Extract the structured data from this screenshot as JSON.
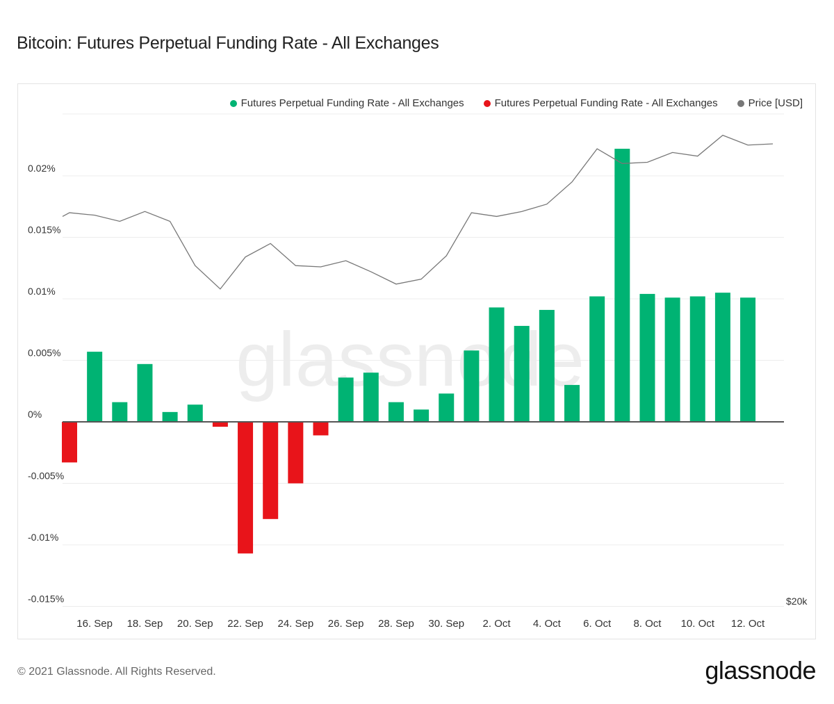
{
  "title": "Bitcoin: Futures Perpetual Funding Rate - All Exchanges",
  "footer": {
    "copyright": "© 2021 Glassnode. All Rights Reserved.",
    "logo": "glassnode"
  },
  "watermark": "glassnode",
  "legend": [
    {
      "label": "Futures Perpetual Funding Rate - All Exchanges",
      "color": "#00b373"
    },
    {
      "label": "Futures Perpetual Funding Rate - All Exchanges",
      "color": "#e8141a"
    },
    {
      "label": "Price [USD]",
      "color": "#777777"
    }
  ],
  "chart_data": {
    "type": "bar",
    "y_axis": {
      "ticks": [
        0.02,
        0.015,
        0.01,
        0.005,
        0,
        -0.005,
        -0.01,
        -0.015
      ],
      "tick_labels": [
        "0.02%",
        "0.015%",
        "0.01%",
        "0.005%",
        "0%",
        "-0.005%",
        "-0.01%",
        "-0.015%"
      ],
      "range": [
        -0.015,
        0.025
      ]
    },
    "right_axis": {
      "label": "$20k"
    },
    "x_tick_labels": [
      "16. Sep",
      "18. Sep",
      "20. Sep",
      "22. Sep",
      "24. Sep",
      "26. Sep",
      "28. Sep",
      "30. Sep",
      "2. Oct",
      "4. Oct",
      "6. Oct",
      "8. Oct",
      "10. Oct",
      "12. Oct"
    ],
    "dates": [
      "15. Sep",
      "16. Sep",
      "17. Sep",
      "18. Sep",
      "19. Sep",
      "20. Sep",
      "21. Sep",
      "22. Sep",
      "23. Sep",
      "24. Sep",
      "25. Sep",
      "26. Sep",
      "27. Sep",
      "28. Sep",
      "29. Sep",
      "30. Sep",
      "1. Oct",
      "2. Oct",
      "3. Oct",
      "4. Oct",
      "5. Oct",
      "6. Oct",
      "7. Oct",
      "8. Oct",
      "9. Oct",
      "10. Oct",
      "11. Oct",
      "12. Oct"
    ],
    "funding_rate": [
      -0.0033,
      0.0057,
      0.0016,
      0.0047,
      0.0008,
      0.0014,
      -0.0004,
      -0.0107,
      -0.0079,
      -0.005,
      -0.0011,
      0.0036,
      0.004,
      0.0016,
      0.001,
      0.0023,
      0.0058,
      0.0093,
      0.0078,
      0.0091,
      0.003,
      0.0102,
      0.0222,
      0.0104,
      0.0101,
      0.0102,
      0.0105,
      0.0101
    ],
    "colors": {
      "positive": "#00b373",
      "negative": "#e8141a",
      "price": "#777777"
    },
    "price_line": [
      0.017,
      0.0168,
      0.0163,
      0.0171,
      0.0163,
      0.0127,
      0.0108,
      0.0134,
      0.0145,
      0.0127,
      0.0126,
      0.0131,
      0.0122,
      0.0112,
      0.0116,
      0.0135,
      0.017,
      0.0167,
      0.0171,
      0.0177,
      0.0195,
      0.0222,
      0.021,
      0.0211,
      0.0219,
      0.0216,
      0.0233,
      0.0225,
      0.0226
    ],
    "price_line_start": 0.0167
  }
}
